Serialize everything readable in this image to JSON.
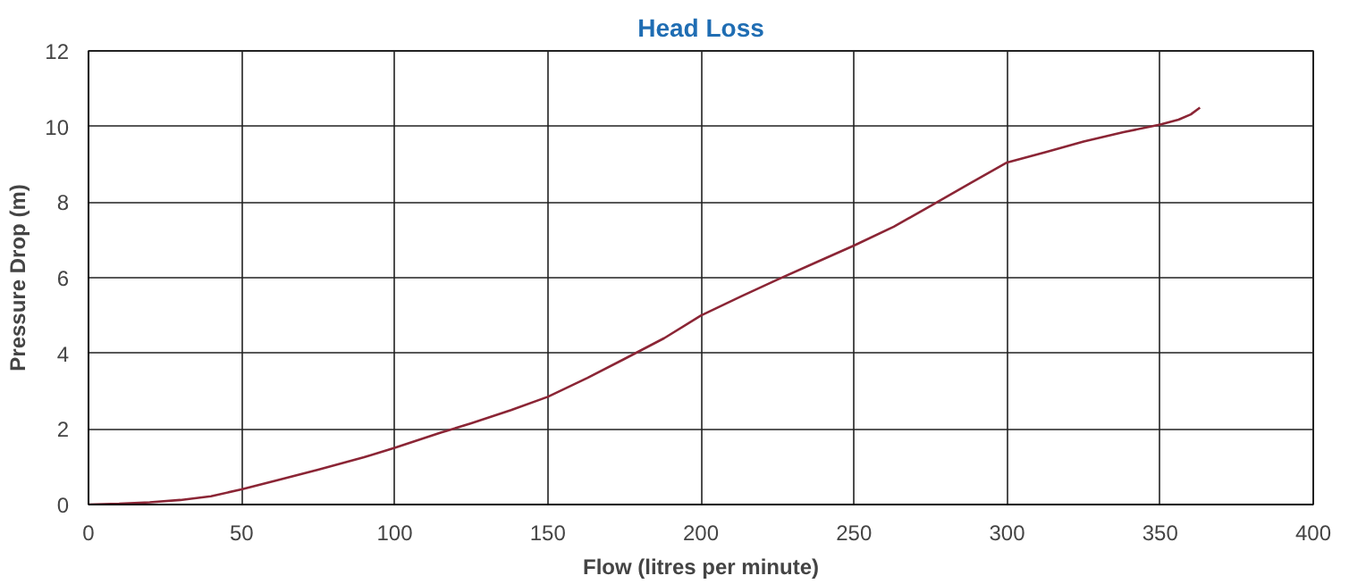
{
  "chart_data": {
    "type": "line",
    "title": "Head Loss",
    "xlabel": "Flow (litres per minute)",
    "ylabel": "Pressure Drop (m)",
    "x": [
      0,
      10,
      20,
      30,
      40,
      50,
      62,
      75,
      90,
      100,
      115,
      125,
      138,
      150,
      163,
      175,
      188,
      200,
      213,
      225,
      238,
      250,
      263,
      275,
      288,
      300,
      313,
      325,
      338,
      350,
      356,
      360,
      363
    ],
    "series": [
      {
        "color": "#8b2535",
        "values": [
          0,
          0.02,
          0.06,
          0.12,
          0.22,
          0.4,
          0.65,
          0.92,
          1.25,
          1.5,
          1.9,
          2.15,
          2.5,
          2.85,
          3.35,
          3.85,
          4.4,
          5.0,
          5.5,
          5.95,
          6.42,
          6.85,
          7.35,
          7.9,
          8.5,
          9.05,
          9.33,
          9.6,
          9.85,
          10.05,
          10.18,
          10.32,
          10.5
        ]
      }
    ],
    "xlim": [
      0,
      400
    ],
    "ylim": [
      0,
      12
    ],
    "xticks": [
      0,
      50,
      100,
      150,
      200,
      250,
      300,
      350,
      400
    ],
    "yticks": [
      0,
      2,
      4,
      6,
      8,
      10,
      12
    ],
    "grid": true,
    "marker": "none",
    "line_style": "solid"
  }
}
